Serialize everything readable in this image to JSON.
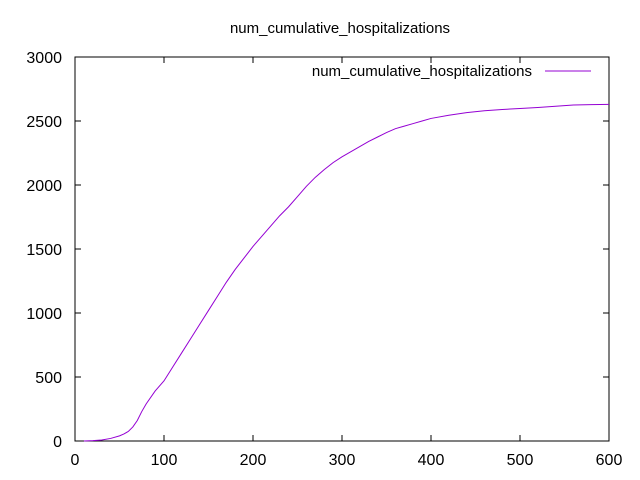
{
  "chart_data": {
    "type": "line",
    "title": "num_cumulative_hospitalizations",
    "xlabel": "",
    "ylabel": "",
    "xlim": [
      0,
      600
    ],
    "ylim": [
      0,
      3000
    ],
    "xticks": [
      0,
      100,
      200,
      300,
      400,
      500,
      600
    ],
    "yticks": [
      0,
      500,
      1000,
      1500,
      2000,
      2500,
      3000
    ],
    "grid": false,
    "legend_position": "top-right",
    "series": [
      {
        "name": "num_cumulative_hospitalizations",
        "color": "#9400d3",
        "x": [
          10,
          20,
          30,
          40,
          50,
          55,
          60,
          65,
          70,
          75,
          80,
          90,
          100,
          110,
          120,
          130,
          140,
          150,
          160,
          170,
          180,
          190,
          200,
          210,
          220,
          230,
          240,
          250,
          260,
          270,
          280,
          290,
          300,
          310,
          320,
          330,
          340,
          350,
          360,
          370,
          380,
          390,
          400,
          420,
          440,
          460,
          480,
          500,
          520,
          540,
          560,
          580,
          600
        ],
        "y": [
          0,
          3,
          8,
          20,
          40,
          55,
          75,
          110,
          160,
          230,
          290,
          390,
          470,
          580,
          690,
          800,
          910,
          1020,
          1130,
          1240,
          1340,
          1430,
          1520,
          1600,
          1680,
          1760,
          1830,
          1910,
          1990,
          2060,
          2120,
          2175,
          2220,
          2260,
          2300,
          2340,
          2375,
          2410,
          2440,
          2460,
          2480,
          2500,
          2520,
          2545,
          2565,
          2580,
          2590,
          2598,
          2605,
          2615,
          2625,
          2628,
          2630
        ]
      }
    ]
  }
}
